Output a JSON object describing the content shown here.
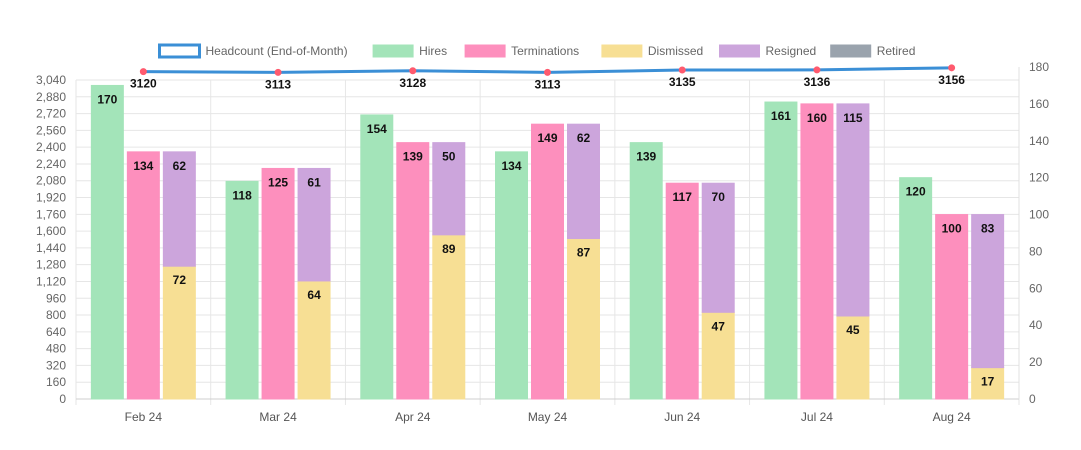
{
  "chart_data": {
    "type": "bar",
    "categories": [
      "Feb 24",
      "Mar 24",
      "Apr 24",
      "May 24",
      "Jun 24",
      "Jul 24",
      "Aug 24"
    ],
    "series": [
      {
        "name": "Headcount (End-of-Month)",
        "type": "line",
        "axis": "right",
        "values": [
          3120,
          3113,
          3128,
          3113,
          3135,
          3136,
          3156
        ],
        "color": "#3b8fd6"
      },
      {
        "name": "Hires",
        "type": "bar",
        "stack": "hires",
        "values": [
          170,
          118,
          154,
          134,
          139,
          161,
          120
        ],
        "color": "#a3e4b9"
      },
      {
        "name": "Terminations",
        "type": "bar",
        "stack": "terminations",
        "values": [
          134,
          125,
          139,
          149,
          117,
          160,
          100
        ],
        "color": "#fd8fbd"
      },
      {
        "name": "Dismissed",
        "type": "bar",
        "stack": "exits",
        "values": [
          72,
          64,
          89,
          87,
          47,
          45,
          17
        ],
        "color": "#f7df94"
      },
      {
        "name": "Resigned",
        "type": "bar",
        "stack": "exits",
        "values": [
          62,
          61,
          50,
          62,
          70,
          115,
          83
        ],
        "color": "#cca5dc"
      },
      {
        "name": "Retired",
        "type": "bar",
        "stack": "exits",
        "values": [
          0,
          0,
          0,
          0,
          0,
          0,
          0
        ],
        "color": "#9aa3ad"
      }
    ],
    "left_axis": {
      "min": 0,
      "max": 3040,
      "step": 160,
      "ticks": [
        "0",
        "160",
        "320",
        "480",
        "640",
        "800",
        "960",
        "1,120",
        "1,280",
        "1,440",
        "1,600",
        "1,760",
        "1,920",
        "2,080",
        "2,240",
        "2,400",
        "2,560",
        "2,720",
        "2,880",
        "3,040"
      ]
    },
    "right_axis": {
      "min": 0,
      "max": 180,
      "step": 20,
      "ticks": [
        "0",
        "20",
        "40",
        "60",
        "80",
        "100",
        "120",
        "140",
        "160",
        "180"
      ]
    },
    "legend_position": "top",
    "grid": true,
    "title": "",
    "xlabel": "",
    "ylabel": ""
  }
}
